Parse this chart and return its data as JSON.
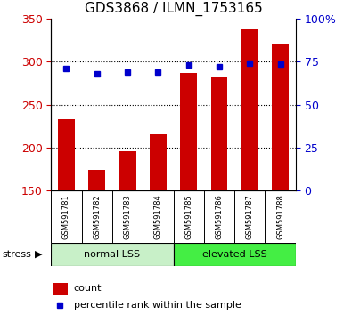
{
  "title": "GDS3868 / ILMN_1753165",
  "samples": [
    "GSM591781",
    "GSM591782",
    "GSM591783",
    "GSM591784",
    "GSM591785",
    "GSM591786",
    "GSM591787",
    "GSM591788"
  ],
  "counts": [
    233,
    174,
    196,
    215,
    287,
    283,
    338,
    321
  ],
  "percentile_ranks": [
    71,
    68,
    69,
    69,
    73,
    72,
    74,
    73.5
  ],
  "ylim_left": [
    150,
    350
  ],
  "ylim_right": [
    0,
    100
  ],
  "yticks_left": [
    150,
    200,
    250,
    300,
    350
  ],
  "yticks_right": [
    0,
    25,
    50,
    75,
    100
  ],
  "bar_color": "#cc0000",
  "dot_color": "#0000cc",
  "group1_label": "normal LSS",
  "group2_label": "elevated LSS",
  "group1_indices": [
    0,
    1,
    2,
    3
  ],
  "group2_indices": [
    4,
    5,
    6,
    7
  ],
  "group1_bg": "#c8f0c8",
  "group2_bg": "#44ee44",
  "stress_label": "stress",
  "legend_count": "count",
  "legend_pct": "percentile rank within the sample",
  "plot_bg": "#ffffff",
  "tick_area_bg": "#cccccc",
  "title_fontsize": 11,
  "ytick_fontsize": 9,
  "label_fontsize": 8,
  "sample_fontsize": 6
}
